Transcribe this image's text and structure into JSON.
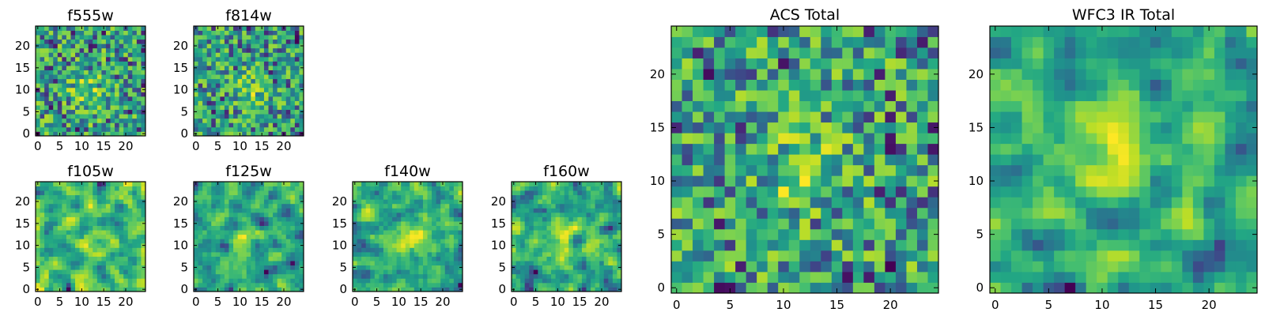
{
  "chart_data": [
    {
      "type": "heatmap",
      "title": "f555w",
      "xlim": [
        0,
        24
      ],
      "ylim": [
        0,
        24
      ],
      "xticks": [
        0,
        5,
        10,
        15,
        20
      ],
      "yticks": [
        0,
        5,
        10,
        15,
        20
      ],
      "tick_labels": [
        "0",
        "5",
        "10",
        "15",
        "20"
      ],
      "grid_size": 25,
      "colormap": "viridis",
      "seed": 11,
      "blob_center": [
        11,
        10
      ],
      "blob_strength": 0.35,
      "smoothing": 0
    },
    {
      "type": "heatmap",
      "title": "f814w",
      "xlim": [
        0,
        24
      ],
      "ylim": [
        0,
        24
      ],
      "xticks": [
        0,
        5,
        10,
        15,
        20
      ],
      "yticks": [
        0,
        5,
        10,
        15,
        20
      ],
      "tick_labels": [
        "0",
        "5",
        "10",
        "15",
        "20"
      ],
      "grid_size": 25,
      "colormap": "viridis",
      "seed": 23,
      "blob_center": [
        12,
        10
      ],
      "blob_strength": 0.35,
      "smoothing": 0
    },
    {
      "type": "heatmap",
      "title": "f105w",
      "xlim": [
        0,
        24
      ],
      "ylim": [
        0,
        24
      ],
      "xticks": [
        0,
        5,
        10,
        15,
        20
      ],
      "yticks": [
        0,
        5,
        10,
        15,
        20
      ],
      "tick_labels": [
        "0",
        "5",
        "10",
        "15",
        "20"
      ],
      "grid_size": 25,
      "colormap": "viridis",
      "seed": 37,
      "blob_center": [
        12,
        12
      ],
      "blob_strength": 0.1,
      "smoothing": 1
    },
    {
      "type": "heatmap",
      "title": "f125w",
      "xlim": [
        0,
        24
      ],
      "ylim": [
        0,
        24
      ],
      "xticks": [
        0,
        5,
        10,
        15,
        20
      ],
      "yticks": [
        0,
        5,
        10,
        15,
        20
      ],
      "tick_labels": [
        "0",
        "5",
        "10",
        "15",
        "20"
      ],
      "grid_size": 25,
      "colormap": "viridis",
      "seed": 41,
      "blob_center": [
        12,
        12
      ],
      "blob_strength": 0.12,
      "smoothing": 1
    },
    {
      "type": "heatmap",
      "title": "f140w",
      "xlim": [
        0,
        24
      ],
      "ylim": [
        0,
        24
      ],
      "xticks": [
        0,
        5,
        10,
        15,
        20
      ],
      "yticks": [
        0,
        5,
        10,
        15,
        20
      ],
      "tick_labels": [
        "0",
        "5",
        "10",
        "15",
        "20"
      ],
      "grid_size": 25,
      "colormap": "viridis",
      "seed": 53,
      "blob_center": [
        13,
        11
      ],
      "blob_strength": 0.2,
      "smoothing": 1
    },
    {
      "type": "heatmap",
      "title": "f160w",
      "xlim": [
        0,
        24
      ],
      "ylim": [
        0,
        24
      ],
      "xticks": [
        0,
        5,
        10,
        15,
        20
      ],
      "yticks": [
        0,
        5,
        10,
        15,
        20
      ],
      "tick_labels": [
        "0",
        "5",
        "10",
        "15",
        "20"
      ],
      "grid_size": 25,
      "colormap": "viridis",
      "seed": 67,
      "blob_center": [
        11,
        12
      ],
      "blob_strength": 0.25,
      "smoothing": 1
    },
    {
      "type": "heatmap",
      "title": "ACS Total",
      "xlim": [
        0,
        24
      ],
      "ylim": [
        0,
        24
      ],
      "xticks": [
        0,
        5,
        10,
        15,
        20
      ],
      "yticks": [
        0,
        5,
        10,
        15,
        20
      ],
      "tick_labels": [
        "0",
        "5",
        "10",
        "15",
        "20"
      ],
      "grid_size": 25,
      "colormap": "viridis",
      "seed": 79,
      "blob_center": [
        12,
        11
      ],
      "blob_strength": 0.4,
      "smoothing": 0
    },
    {
      "type": "heatmap",
      "title": "WFC3 IR Total",
      "xlim": [
        0,
        24
      ],
      "ylim": [
        0,
        24
      ],
      "xticks": [
        0,
        5,
        10,
        15,
        20
      ],
      "yticks": [
        0,
        5,
        10,
        15,
        20
      ],
      "tick_labels": [
        "0",
        "5",
        "10",
        "15",
        "20"
      ],
      "grid_size": 25,
      "colormap": "viridis",
      "seed": 97,
      "blob_center": [
        11,
        12
      ],
      "blob_strength": 0.3,
      "smoothing": 1
    }
  ]
}
